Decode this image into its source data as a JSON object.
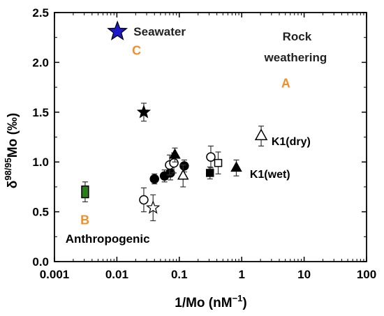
{
  "chart_data": {
    "type": "scatter",
    "xlabel_main": "1/Mo (nM",
    "xlabel_sup": "−1",
    "xlabel_end": ")",
    "ylabel_pre": "δ",
    "ylabel_sup": "98/95",
    "ylabel_post": "Mo (‰)",
    "x_scale": "log",
    "xlim": [
      0.001,
      100
    ],
    "ylim": [
      0.0,
      2.5
    ],
    "grid": false,
    "x_ticks": [
      0.001,
      0.01,
      0.1,
      1,
      10,
      100
    ],
    "x_tick_labels": [
      "0.001",
      "0.01",
      "0.1",
      "1",
      "10",
      "100"
    ],
    "y_ticks": [
      0.0,
      0.5,
      1.0,
      1.5,
      2.0,
      2.5
    ],
    "y_tick_labels": [
      "0.0",
      "0.5",
      "1.0",
      "1.5",
      "2.0",
      "2.5"
    ],
    "points": [
      {
        "x": 0.0102,
        "y": 2.31,
        "err": 0,
        "marker": "star",
        "fill": "#1a1acc",
        "size": 14
      },
      {
        "x": 0.027,
        "y": 1.5,
        "err": 0.09,
        "marker": "star",
        "fill": "#000000",
        "size": 9
      },
      {
        "x": 0.0031,
        "y": 0.7,
        "err": 0.1,
        "marker": "rect",
        "fill": "#2e7d1c",
        "size": 7
      },
      {
        "x": 0.038,
        "y": 0.54,
        "err": 0.13,
        "marker": "star",
        "fill": "#ffffff",
        "size": 9
      },
      {
        "x": 0.027,
        "y": 0.62,
        "err": 0.12,
        "marker": "circle",
        "fill": "#ffffff",
        "size": 6
      },
      {
        "x": 0.04,
        "y": 0.83,
        "err": 0.05,
        "marker": "circle",
        "fill": "#000000",
        "size": 6
      },
      {
        "x": 0.058,
        "y": 0.86,
        "err": 0.06,
        "marker": "circle",
        "fill": "#000000",
        "size": 6
      },
      {
        "x": 0.072,
        "y": 0.89,
        "err": 0.07,
        "marker": "circle",
        "fill": "#000000",
        "size": 6
      },
      {
        "x": 0.07,
        "y": 0.97,
        "err": 0.1,
        "marker": "circle",
        "fill": "#ffffff",
        "size": 6
      },
      {
        "x": 0.082,
        "y": 0.99,
        "err": 0.1,
        "marker": "circle",
        "fill": "#ffffff",
        "size": 6
      },
      {
        "x": 0.085,
        "y": 1.07,
        "err": 0.07,
        "marker": "triangle",
        "fill": "#000000",
        "size": 7
      },
      {
        "x": 0.12,
        "y": 0.96,
        "err": 0.06,
        "marker": "circle",
        "fill": "#000000",
        "size": 6
      },
      {
        "x": 0.115,
        "y": 0.86,
        "err": 0.11,
        "marker": "triangle",
        "fill": "#ffffff",
        "size": 7
      },
      {
        "x": 0.31,
        "y": 0.89,
        "err": 0.06,
        "marker": "square",
        "fill": "#000000",
        "size": 5
      },
      {
        "x": 0.32,
        "y": 1.05,
        "err": 0.11,
        "marker": "circle",
        "fill": "#ffffff",
        "size": 6
      },
      {
        "x": 0.42,
        "y": 0.99,
        "err": 0.11,
        "marker": "square",
        "fill": "#ffffff",
        "size": 5
      },
      {
        "x": 0.82,
        "y": 0.94,
        "err": 0.08,
        "marker": "triangle",
        "fill": "#000000",
        "size": 7
      },
      {
        "x": 2.05,
        "y": 1.26,
        "err": 0.1,
        "marker": "triangle",
        "fill": "#ffffff",
        "size": 8
      }
    ],
    "annotations": [
      {
        "text": "Seawater",
        "x": 0.0185,
        "y": 2.31,
        "color": "#222222",
        "size": 17
      },
      {
        "text": "C",
        "x": 0.0175,
        "y": 2.12,
        "color": "#f0902a",
        "size": 18
      },
      {
        "text": "Rock",
        "x": 4.5,
        "y": 2.26,
        "color": "#222222",
        "size": 17
      },
      {
        "text": "weathering",
        "x": 2.3,
        "y": 2.05,
        "color": "#222222",
        "size": 17
      },
      {
        "text": "A",
        "x": 4.3,
        "y": 1.79,
        "color": "#f0902a",
        "size": 18
      },
      {
        "text": "K1(dry)",
        "x": 3.0,
        "y": 1.21,
        "color": "#000000",
        "size": 16
      },
      {
        "text": "K1(wet)",
        "x": 1.35,
        "y": 0.88,
        "color": "#000000",
        "size": 16
      },
      {
        "text": "B",
        "x": 0.0026,
        "y": 0.42,
        "color": "#f0902a",
        "size": 18
      },
      {
        "text": "Anthropogenic",
        "x": 0.0015,
        "y": 0.23,
        "color": "#000000",
        "size": 17
      }
    ]
  }
}
